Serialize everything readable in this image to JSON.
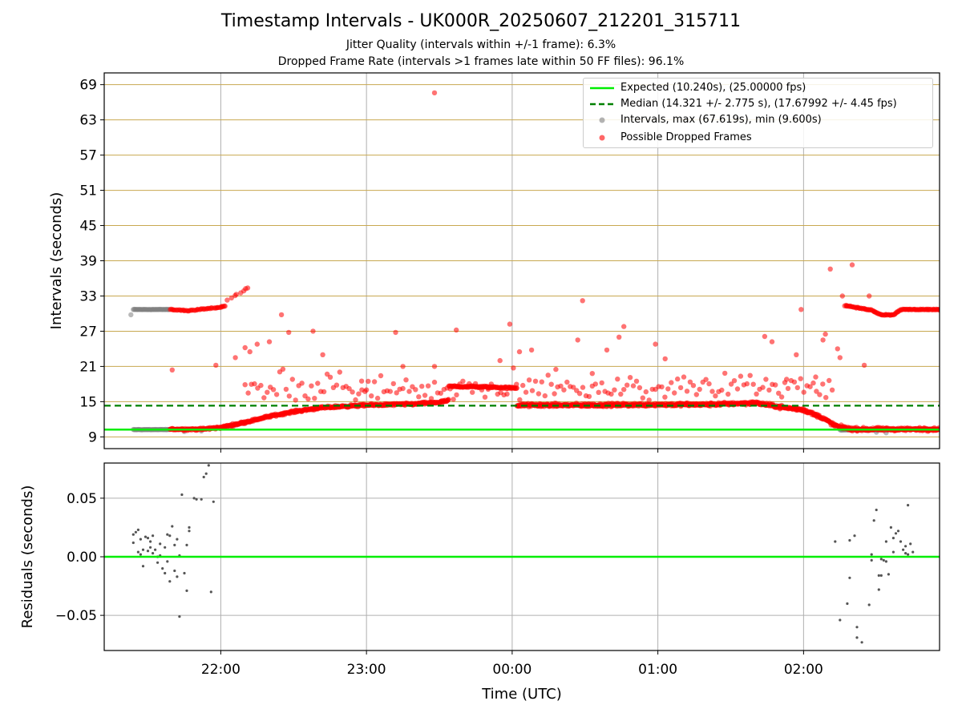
{
  "title": "Timestamp Intervals - UK000R_20250607_212201_315711",
  "subtitle_1": "Jitter Quality (intervals within +/-1 frame): 6.3%",
  "subtitle_2": "Dropped Frame Rate (intervals >1 frames late within 50 FF files): 96.1%",
  "colors": {
    "expected": "#00ee00",
    "median": "#008000",
    "intervals": "#808080",
    "dropped": "#ff0000",
    "frame_gridlines": "#c8a850",
    "residual_points": "#555555"
  },
  "chart_data": [
    {
      "type": "scatter",
      "panel": "top",
      "ylabel": "Intervals (seconds)",
      "ylim": [
        7.0,
        71.0
      ],
      "yticks": [
        "9",
        "15",
        "21",
        "27",
        "33",
        "39",
        "45",
        "51",
        "57",
        "63",
        "69"
      ],
      "xlim": [
        "21:12",
        "02:56"
      ],
      "grid": "vertical at hours; horizontal at yticks (tan)",
      "legend_position": "top-right",
      "legend": [
        "Expected (10.240s), (25.00000 fps)",
        "Median (14.321 +/- 2.775 s), (17.67992 +/- 4.45 fps)",
        "Intervals, max (67.619s), min (9.600s)",
        "Possible Dropped Frames"
      ],
      "expected_line": 10.24,
      "median_line": 14.321,
      "series": [
        {
          "name": "Intervals, max (67.619s), min (9.600s)",
          "segments": [
            {
              "x_start": "21:24",
              "x_end": "21:39",
              "y": 30.7
            },
            {
              "x_start": "21:24",
              "x_end": "21:39",
              "y": 10.24
            },
            {
              "x_start": "02:15",
              "x_end": "02:35",
              "y": 10.2
            }
          ],
          "points": [
            [
              "21:23",
              29.8
            ],
            [
              "21:45",
              9.9
            ],
            [
              "21:52",
              10.0
            ],
            [
              "02:26",
              10.1
            ],
            [
              "02:30",
              9.8
            ],
            [
              "02:34",
              9.7
            ]
          ]
        },
        {
          "name": "Possible Dropped Frames",
          "upper_band": [
            [
              "21:39",
              30.7
            ],
            [
              "21:47",
              30.5
            ],
            [
              "21:53",
              30.8
            ],
            [
              "21:59",
              31.0
            ],
            [
              "22:02",
              31.3
            ]
          ],
          "upper_rising": [
            [
              "22:03",
              32.3
            ],
            [
              "22:06",
              33.2
            ],
            [
              "22:09",
              33.8
            ],
            [
              "22:12",
              34.7
            ]
          ],
          "main_band": [
            [
              "21:39",
              10.3
            ],
            [
              "21:52",
              10.3
            ],
            [
              "22:00",
              10.6
            ],
            [
              "22:10",
              11.5
            ],
            [
              "22:20",
              12.5
            ],
            [
              "22:30",
              13.3
            ],
            [
              "22:40",
              13.9
            ],
            [
              "22:50",
              14.2
            ],
            [
              "23:00",
              14.4
            ],
            [
              "23:10",
              14.5
            ],
            [
              "23:20",
              14.6
            ],
            [
              "23:30",
              14.9
            ],
            [
              "23:34",
              15.2
            ]
          ],
          "high_segment": [
            [
              "23:34",
              17.6
            ],
            [
              "23:50",
              17.5
            ],
            [
              "00:02",
              17.3
            ]
          ],
          "later_band": [
            [
              "00:02",
              14.4
            ],
            [
              "00:30",
              14.4
            ],
            [
              "01:00",
              14.5
            ],
            [
              "01:20",
              14.5
            ],
            [
              "01:40",
              14.8
            ],
            [
              "01:52",
              14.0
            ],
            [
              "02:00",
              13.6
            ],
            [
              "02:08",
              12.2
            ],
            [
              "02:13",
              10.9
            ],
            [
              "02:20",
              10.3
            ],
            [
              "02:56",
              10.3
            ]
          ],
          "tail_upper": [
            [
              "02:17",
              31.4
            ],
            [
              "02:22",
              31.0
            ],
            [
              "02:28",
              30.6
            ],
            [
              "02:32",
              29.8
            ],
            [
              "02:37",
              29.8
            ],
            [
              "02:40",
              30.7
            ],
            [
              "02:56",
              30.7
            ]
          ],
          "outliers": [
            [
              "23:28",
              67.6
            ],
            [
              "21:40",
              20.4
            ],
            [
              "21:58",
              21.2
            ],
            [
              "22:06",
              22.5
            ],
            [
              "22:10",
              24.2
            ],
            [
              "22:12",
              23.5
            ],
            [
              "22:15",
              24.8
            ],
            [
              "22:20",
              25.2
            ],
            [
              "22:25",
              29.8
            ],
            [
              "22:28",
              26.8
            ],
            [
              "22:38",
              27.0
            ],
            [
              "22:42",
              23.0
            ],
            [
              "22:58",
              18.5
            ],
            [
              "23:00",
              17.0
            ],
            [
              "23:12",
              26.8
            ],
            [
              "23:15",
              21.0
            ],
            [
              "23:28",
              21.0
            ],
            [
              "23:37",
              27.2
            ],
            [
              "23:55",
              22.0
            ],
            [
              "23:59",
              28.2
            ],
            [
              "00:03",
              23.5
            ],
            [
              "00:08",
              23.8
            ],
            [
              "00:18",
              20.5
            ],
            [
              "00:27",
              25.5
            ],
            [
              "00:29",
              32.2
            ],
            [
              "00:33",
              19.8
            ],
            [
              "00:39",
              23.8
            ],
            [
              "00:44",
              26.0
            ],
            [
              "00:46",
              27.8
            ],
            [
              "00:59",
              24.8
            ],
            [
              "01:03",
              22.3
            ],
            [
              "01:44",
              26.1
            ],
            [
              "01:47",
              25.2
            ],
            [
              "01:53",
              18.8
            ],
            [
              "01:57",
              23.0
            ],
            [
              "01:59",
              30.7
            ],
            [
              "02:05",
              19.2
            ],
            [
              "02:08",
              25.5
            ],
            [
              "02:09",
              26.5
            ],
            [
              "02:11",
              37.6
            ],
            [
              "02:14",
              24.0
            ],
            [
              "02:15",
              22.5
            ],
            [
              "02:16",
              33.0
            ],
            [
              "02:20",
              38.3
            ],
            [
              "02:25",
              21.2
            ],
            [
              "02:27",
              33.0
            ]
          ]
        }
      ]
    },
    {
      "type": "scatter",
      "panel": "bottom",
      "xlabel": "Time (UTC)",
      "ylabel": "Residuals (seconds)",
      "ylim": [
        -0.08,
        0.08
      ],
      "yticks": [
        "−0.05",
        "0.00",
        "0.05"
      ],
      "xticks": [
        "22:00",
        "23:00",
        "00:00",
        "01:00",
        "02:00"
      ],
      "grid": "vertical at hours; horizontal at yticks",
      "zero_line": 0.0,
      "points": [
        [
          "21:24",
          0.012
        ],
        [
          "21:24",
          0.019
        ],
        [
          "21:25",
          0.021
        ],
        [
          "21:26",
          0.023
        ],
        [
          "21:26",
          0.004
        ],
        [
          "21:27",
          0.002
        ],
        [
          "21:27",
          0.015
        ],
        [
          "21:28",
          -0.008
        ],
        [
          "21:28",
          0.006
        ],
        [
          "21:29",
          0.017
        ],
        [
          "21:30",
          0.005
        ],
        [
          "21:30",
          0.016
        ],
        [
          "21:31",
          0.013
        ],
        [
          "21:31",
          0.008
        ],
        [
          "21:32",
          0.003
        ],
        [
          "21:32",
          0.018
        ],
        [
          "21:33",
          0.006
        ],
        [
          "21:34",
          0.0
        ],
        [
          "21:34",
          -0.005
        ],
        [
          "21:35",
          0.001
        ],
        [
          "21:35",
          0.011
        ],
        [
          "21:36",
          -0.01
        ],
        [
          "21:37",
          -0.014
        ],
        [
          "21:37",
          0.008
        ],
        [
          "21:38",
          0.019
        ],
        [
          "21:38",
          -0.004
        ],
        [
          "21:39",
          -0.021
        ],
        [
          "21:39",
          0.018
        ],
        [
          "21:40",
          0.026
        ],
        [
          "21:41",
          0.01
        ],
        [
          "21:41",
          -0.012
        ],
        [
          "21:42",
          0.015
        ],
        [
          "21:42",
          -0.017
        ],
        [
          "21:43",
          0.001
        ],
        [
          "21:43",
          -0.051
        ],
        [
          "21:44",
          0.053
        ],
        [
          "21:45",
          -0.014
        ],
        [
          "21:46",
          -0.029
        ],
        [
          "21:46",
          0.01
        ],
        [
          "21:47",
          0.022
        ],
        [
          "21:47",
          0.025
        ],
        [
          "21:49",
          0.05
        ],
        [
          "21:50",
          0.049
        ],
        [
          "21:52",
          0.049
        ],
        [
          "21:53",
          0.068
        ],
        [
          "21:54",
          0.071
        ],
        [
          "21:55",
          0.078
        ],
        [
          "21:56",
          -0.03
        ],
        [
          "21:57",
          0.047
        ],
        [
          "02:13",
          0.013
        ],
        [
          "02:15",
          -0.054
        ],
        [
          "02:18",
          -0.04
        ],
        [
          "02:19",
          -0.018
        ],
        [
          "02:19",
          0.014
        ],
        [
          "02:21",
          0.018
        ],
        [
          "02:22",
          -0.06
        ],
        [
          "02:22",
          -0.069
        ],
        [
          "02:24",
          -0.073
        ],
        [
          "02:27",
          -0.041
        ],
        [
          "02:28",
          0.002
        ],
        [
          "02:28",
          -0.003
        ],
        [
          "02:29",
          0.031
        ],
        [
          "02:30",
          0.04
        ],
        [
          "02:31",
          -0.028
        ],
        [
          "02:31",
          -0.016
        ],
        [
          "02:32",
          -0.016
        ],
        [
          "02:32",
          -0.002
        ],
        [
          "02:33",
          -0.003
        ],
        [
          "02:34",
          -0.004
        ],
        [
          "02:34",
          0.013
        ],
        [
          "02:35",
          -0.015
        ],
        [
          "02:36",
          0.025
        ],
        [
          "02:37",
          0.016
        ],
        [
          "02:37",
          0.004
        ],
        [
          "02:38",
          0.02
        ],
        [
          "02:39",
          0.022
        ],
        [
          "02:40",
          0.013
        ],
        [
          "02:41",
          0.006
        ],
        [
          "02:42",
          0.009
        ],
        [
          "02:42",
          0.003
        ],
        [
          "02:43",
          0.002
        ],
        [
          "02:43",
          0.044
        ],
        [
          "02:44",
          0.011
        ],
        [
          "02:45",
          0.004
        ]
      ]
    }
  ]
}
